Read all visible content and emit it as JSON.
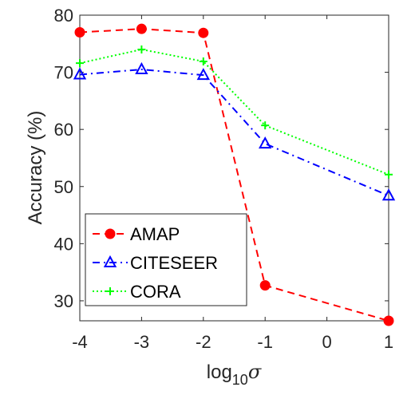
{
  "chart_data": {
    "type": "line",
    "title": "",
    "xlabel": "log",
    "xlabel_sub": "10",
    "xlabel_symbol": "σ",
    "ylabel": "Accuracy (%)",
    "xlim": [
      -4,
      1
    ],
    "ylim": [
      26.5,
      80
    ],
    "xticks": [
      -4,
      -3,
      -2,
      -1,
      0,
      1
    ],
    "xtick_labels": [
      "-4",
      "-3",
      "-2",
      "-1",
      "0",
      "1"
    ],
    "yticks": [
      30,
      40,
      50,
      60,
      70,
      80
    ],
    "ytick_labels": [
      "30",
      "40",
      "50",
      "60",
      "70",
      "80"
    ],
    "grid": false,
    "legend_position": "bottom-left",
    "x": [
      -4,
      -3,
      -2,
      -1,
      1
    ],
    "series": [
      {
        "name": "AMAP",
        "values": [
          77.0,
          77.6,
          76.9,
          32.7,
          26.5
        ],
        "color": "#ff0000",
        "marker": "circle",
        "line_style": "dashed"
      },
      {
        "name": "CITESEER",
        "values": [
          69.6,
          70.5,
          69.5,
          57.5,
          48.4
        ],
        "color": "#0000ff",
        "marker": "triangle",
        "line_style": "dash-dot"
      },
      {
        "name": "CORA",
        "values": [
          71.6,
          74.0,
          71.9,
          60.7,
          52.1
        ],
        "color": "#00ff00",
        "marker": "plus",
        "line_style": "dotted"
      }
    ]
  }
}
